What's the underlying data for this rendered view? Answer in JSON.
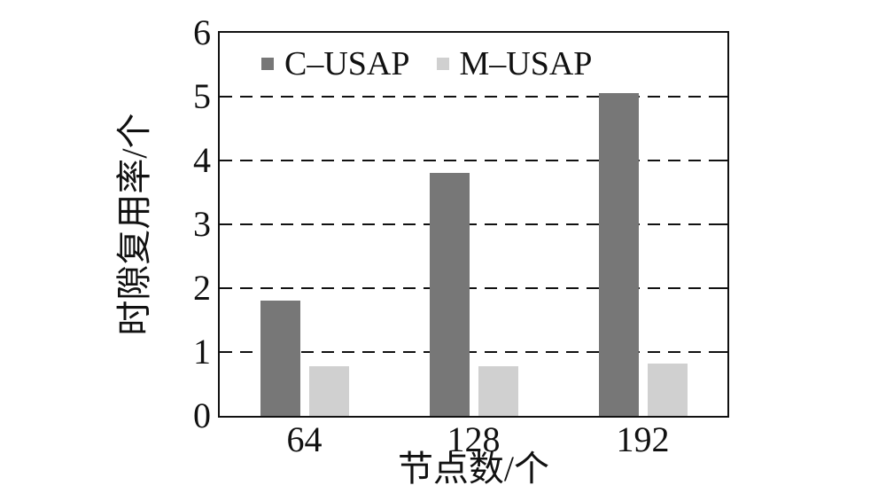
{
  "chart_data": {
    "type": "bar",
    "title": "",
    "categories": [
      "64",
      "128",
      "192"
    ],
    "series": [
      {
        "name": "C–USAP",
        "color": "#777777",
        "values": [
          1.8,
          3.8,
          5.05
        ]
      },
      {
        "name": "M–USAP",
        "color": "#d0d0d0",
        "values": [
          0.78,
          0.78,
          0.82
        ]
      }
    ],
    "xlabel": "节点数/个",
    "ylabel": "时隙复用率/个",
    "ylim": [
      0,
      6
    ],
    "yticks": [
      "0",
      "1",
      "2",
      "3",
      "4",
      "5",
      "6"
    ],
    "grid": {
      "horizontal": true,
      "style": "dashed",
      "levels": [
        1,
        2,
        3,
        4,
        5
      ]
    },
    "legend": {
      "position": "top-inside"
    },
    "axis_color": "#111111",
    "background": "#ffffff"
  }
}
